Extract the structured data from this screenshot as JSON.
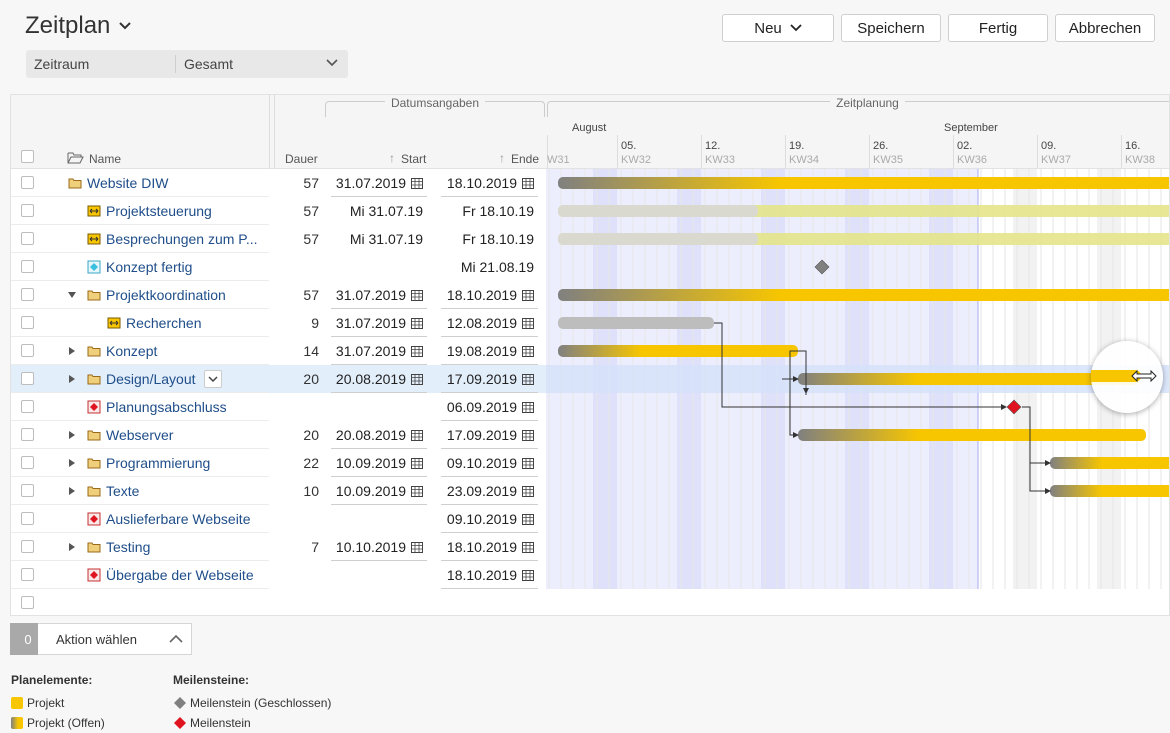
{
  "page": {
    "title": "Zeitplan"
  },
  "toolbar": {
    "neu": "Neu",
    "speichern": "Speichern",
    "fertig": "Fertig",
    "abbrechen": "Abbrechen"
  },
  "filter": {
    "label": "Zeitraum",
    "value": "Gesamt"
  },
  "header": {
    "name": "Name",
    "dauer": "Dauer",
    "start": "Start",
    "ende": "Ende",
    "group_dates": "Datumsangaben",
    "group_plan": "Zeitplanung",
    "months": [
      "August",
      "September"
    ],
    "weeks": [
      {
        "date": "",
        "kw": "W31"
      },
      {
        "date": "05.",
        "kw": "KW32"
      },
      {
        "date": "12.",
        "kw": "KW33"
      },
      {
        "date": "19.",
        "kw": "KW34"
      },
      {
        "date": "26.",
        "kw": "KW35"
      },
      {
        "date": "02.",
        "kw": "KW36"
      },
      {
        "date": "09.",
        "kw": "KW37"
      },
      {
        "date": "16.",
        "kw": "KW38"
      }
    ]
  },
  "rows": [
    {
      "name": "Website DIW",
      "icon": "folder-icon",
      "indent": 0,
      "caret": "",
      "dauer": "57",
      "start": "31.07.2019",
      "ende": "18.10.2019",
      "editable": true
    },
    {
      "name": "Projektsteuerung",
      "icon": "task-icon",
      "indent": 1,
      "caret": "",
      "dauer": "57",
      "start": "Mi 31.07.19",
      "ende": "Fr 18.10.19",
      "editable": false
    },
    {
      "name": "Besprechungen zum P...",
      "icon": "task-icon",
      "indent": 1,
      "caret": "",
      "dauer": "57",
      "start": "Mi 31.07.19",
      "ende": "Fr 18.10.19",
      "editable": false
    },
    {
      "name": "Konzept fertig",
      "icon": "milestone-closed-icon",
      "indent": 1,
      "caret": "",
      "dauer": "",
      "start": "",
      "ende": "Mi 21.08.19",
      "editable": false
    },
    {
      "name": "Projektkoordination",
      "icon": "folder-icon",
      "indent": 1,
      "caret": "down",
      "dauer": "57",
      "start": "31.07.2019",
      "ende": "18.10.2019",
      "editable": true
    },
    {
      "name": "Recherchen",
      "icon": "task-icon",
      "indent": 2,
      "caret": "",
      "dauer": "9",
      "start": "31.07.2019",
      "ende": "12.08.2019",
      "editable": true
    },
    {
      "name": "Konzept",
      "icon": "folder-icon",
      "indent": 1,
      "caret": "right",
      "dauer": "14",
      "start": "31.07.2019",
      "ende": "19.08.2019",
      "editable": true
    },
    {
      "name": "Design/Layout",
      "icon": "folder-icon",
      "indent": 1,
      "caret": "right",
      "dauer": "20",
      "start": "20.08.2019",
      "ende": "17.09.2019",
      "editable": true,
      "selected": true
    },
    {
      "name": "Planungsabschluss",
      "icon": "milestone-icon",
      "indent": 1,
      "caret": "",
      "dauer": "",
      "start": "",
      "ende": "06.09.2019",
      "editable": true
    },
    {
      "name": "Webserver",
      "icon": "folder-icon",
      "indent": 1,
      "caret": "right",
      "dauer": "20",
      "start": "20.08.2019",
      "ende": "17.09.2019",
      "editable": true
    },
    {
      "name": "Programmierung",
      "icon": "folder-icon",
      "indent": 1,
      "caret": "right",
      "dauer": "22",
      "start": "10.09.2019",
      "ende": "09.10.2019",
      "editable": true
    },
    {
      "name": "Texte",
      "icon": "folder-icon",
      "indent": 1,
      "caret": "right",
      "dauer": "10",
      "start": "10.09.2019",
      "ende": "23.09.2019",
      "editable": true
    },
    {
      "name": "Auslieferbare Webseite",
      "icon": "milestone-icon",
      "indent": 1,
      "caret": "",
      "dauer": "",
      "start": "",
      "ende": "09.10.2019",
      "editable": true
    },
    {
      "name": "Testing",
      "icon": "folder-icon",
      "indent": 1,
      "caret": "right",
      "dauer": "7",
      "start": "10.10.2019",
      "ende": "18.10.2019",
      "editable": true
    },
    {
      "name": "Übergabe der Webseite",
      "icon": "milestone-icon",
      "indent": 1,
      "caret": "",
      "dauer": "",
      "start": "",
      "ende": "18.10.2019",
      "editable": true
    }
  ],
  "action": {
    "count": "0",
    "label": "Aktion wählen"
  },
  "legend": {
    "plan_title": "Planelemente:",
    "plan_items": [
      "Projekt",
      "Projekt (Offen)"
    ],
    "ms_title": "Meilensteine:",
    "ms_items": [
      "Meilenstein (Geschlossen)",
      "Meilenstein"
    ]
  },
  "colors": {
    "bar": "#f7c600",
    "bar_dark": "#808080",
    "light_bar": "#e4e48a",
    "milestone": "#e0141e",
    "milestone_closed": "#808080"
  }
}
